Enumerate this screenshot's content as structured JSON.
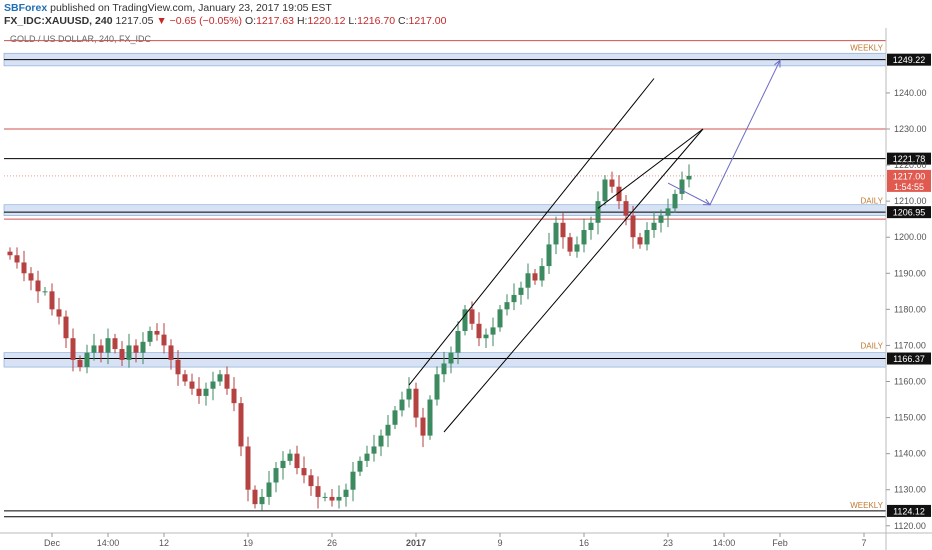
{
  "header": {
    "brand": "SBForex",
    "published": " published on TradingView.com, January 23, 2017 19:05 EST",
    "symbol": "FX_IDC:XAUUSD, 240",
    "last": "1217.05",
    "change": "▼ −0.65 (−0.05%)",
    "o_label": "O:",
    "o_value": "1217.63",
    "h_label": "H:",
    "h_value": "1220.12",
    "l_label": "L:",
    "l_value": "1216.70",
    "c_label": "C:",
    "c_value": "1217.00"
  },
  "chart_data": {
    "type": "candlestick",
    "title": "GOLD / US DOLLAR, 240, FX_IDC",
    "ylim": [
      1118,
      1258
    ],
    "y_ticks": [
      1120,
      1130,
      1140,
      1150,
      1160,
      1170,
      1180,
      1190,
      1200,
      1210,
      1220,
      1230,
      1240
    ],
    "x_ticks": [
      {
        "label": "Dec",
        "i": 6
      },
      {
        "label": "14:00",
        "i": 14
      },
      {
        "label": "12",
        "i": 22
      },
      {
        "label": "19",
        "i": 34
      },
      {
        "label": "26",
        "i": 46
      },
      {
        "label": "2017",
        "i": 58
      },
      {
        "label": "9",
        "i": 70
      },
      {
        "label": "16",
        "i": 82
      },
      {
        "label": "23",
        "i": 94
      },
      {
        "label": "14:00",
        "i": 102
      },
      {
        "label": "Feb",
        "i": 110
      },
      {
        "label": "7",
        "i": 122
      }
    ],
    "bars_count": 126,
    "closes": [
      1195,
      1193,
      1190,
      1188,
      1185,
      1185,
      1180,
      1178,
      1172,
      1166,
      1164,
      1168,
      1170,
      1168,
      1172,
      1169,
      1166,
      1170,
      1168,
      1171,
      1174,
      1173,
      1170,
      1166,
      1162,
      1160,
      1158,
      1156,
      1158,
      1160,
      1162,
      1158,
      1154,
      1142,
      1130,
      1126,
      1128,
      1132,
      1136,
      1138,
      1140,
      1136,
      1134,
      1131,
      1128,
      1128,
      1127,
      1128,
      1130,
      1135,
      1138,
      1140,
      1142,
      1145,
      1148,
      1152,
      1155,
      1158,
      1150,
      1145,
      1155,
      1162,
      1165,
      1168,
      1174,
      1180,
      1176,
      1172,
      1173,
      1175,
      1180,
      1182,
      1184,
      1186,
      1190,
      1188,
      1192,
      1198,
      1204,
      1200,
      1196,
      1198,
      1202,
      1204,
      1210,
      1216,
      1214,
      1210,
      1206,
      1200,
      1198,
      1202,
      1204,
      1206,
      1208,
      1212,
      1216,
      1217
    ],
    "levels": [
      {
        "value": 1254.5,
        "color": "#d05050"
      },
      {
        "value": 1249.22,
        "color": "#000000",
        "label": "1249.22",
        "band": [
          1247.5,
          1251
        ],
        "zone": "WEEKLY"
      },
      {
        "value": 1230,
        "color": "#d05050"
      },
      {
        "value": 1221.78,
        "color": "#000000",
        "label": "1221.78"
      },
      {
        "value": 1206.95,
        "color": "#000000",
        "label": "1206.95",
        "band": [
          1206,
          1209
        ],
        "zone": "DAILY"
      },
      {
        "value": 1205,
        "color": "#d05050"
      },
      {
        "value": 1166.37,
        "color": "#000000",
        "label": "1166.37",
        "band": [
          1164,
          1168
        ],
        "zone": "DAILY"
      },
      {
        "value": 1124.12,
        "color": "#000000",
        "label": "1124.12",
        "zone": "WEEKLY"
      },
      {
        "value": 1122.5,
        "color": "#000000"
      }
    ],
    "price_label": {
      "value": 1217.0,
      "text": "1217.00",
      "sub": "1:54:55"
    },
    "channel": [
      {
        "i1": 57,
        "v1": 1159,
        "i2": 92,
        "v2": 1244
      },
      {
        "i1": 62,
        "v1": 1146,
        "i2": 99,
        "v2": 1230
      },
      {
        "i1": 84,
        "v1": 1208,
        "i2": 99,
        "v2": 1230
      }
    ],
    "arrows": [
      {
        "i1": 94,
        "v1": 1215,
        "i2": 100,
        "v2": 1209
      },
      {
        "i1": 100,
        "v1": 1209,
        "i2": 110,
        "v2": 1249
      }
    ]
  },
  "colors": {
    "up": "#3c8a60",
    "down": "#b54141",
    "zone_fill": "#c9daf2",
    "zone_stroke": "#7fa3d6",
    "arrow": "#6c6cc6",
    "axis_text": "#555555",
    "price_tag": "#e05a50"
  }
}
